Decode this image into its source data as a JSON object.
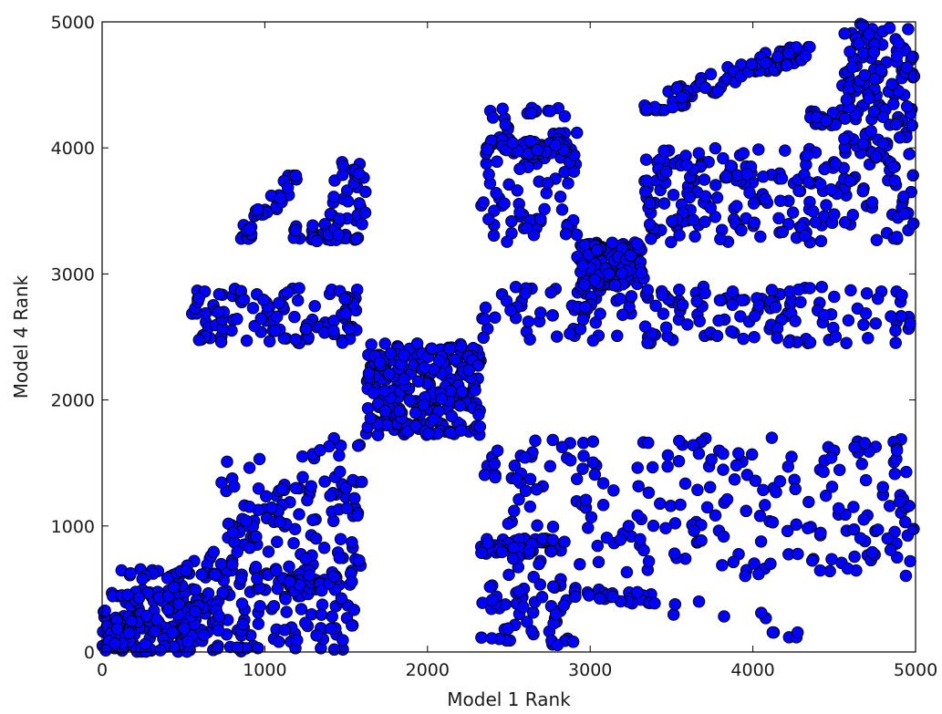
{
  "chart_data": {
    "type": "scatter",
    "title": "",
    "xlabel": "Model 1 Rank",
    "ylabel": "Model 4 Rank",
    "xlim": [
      0,
      5000
    ],
    "ylim": [
      0,
      5000
    ],
    "x_ticks": [
      "0",
      "1000",
      "2000",
      "3000",
      "4000",
      "5000"
    ],
    "y_ticks": [
      "0",
      "1000",
      "2000",
      "3000",
      "4000",
      "5000"
    ],
    "grid": false,
    "legend": "none",
    "marker": {
      "shape": "circle",
      "fill": "#0000ff",
      "edge": "#000000"
    },
    "clusters": [
      {
        "x": [
          0,
          700
        ],
        "y": [
          0,
          500
        ],
        "n": 130,
        "density": "dense"
      },
      {
        "x": [
          0,
          1600
        ],
        "y": [
          0,
          1700
        ],
        "n": 260,
        "shape": "lower-triangle"
      },
      {
        "x": [
          700,
          1600
        ],
        "y": [
          100,
          1700
        ],
        "n": 70
      },
      {
        "x": [
          1150,
          1450
        ],
        "y": [
          480,
          620
        ],
        "n": 30,
        "density": "dense"
      },
      {
        "x": [
          100,
          750
        ],
        "y": [
          580,
          660
        ],
        "n": 25
      },
      {
        "x": [
          550,
          1600
        ],
        "y": [
          2450,
          2900
        ],
        "n": 110
      },
      {
        "x": [
          850,
          1200
        ],
        "y": [
          3280,
          3780
        ],
        "n": 35,
        "shape": "diagonal"
      },
      {
        "x": [
          1150,
          1500
        ],
        "y": [
          3260,
          3400
        ],
        "n": 25
      },
      {
        "x": [
          1400,
          1620
        ],
        "y": [
          3260,
          3950
        ],
        "n": 35
      },
      {
        "x": [
          1620,
          2330
        ],
        "y": [
          1720,
          2450
        ],
        "n": 260,
        "density": "dense"
      },
      {
        "x": [
          2330,
          2920
        ],
        "y": [
          40,
          600
        ],
        "n": 55
      },
      {
        "x": [
          2330,
          2850
        ],
        "y": [
          780,
          900
        ],
        "n": 50,
        "density": "dense"
      },
      {
        "x": [
          2330,
          5000
        ],
        "y": [
          600,
          1700
        ],
        "n": 230
      },
      {
        "x": [
          2900,
          3400
        ],
        "y": [
          380,
          500
        ],
        "n": 25
      },
      {
        "x": [
          3500,
          4100
        ],
        "y": [
          250,
          420
        ],
        "n": 6
      },
      {
        "x": [
          4100,
          4300
        ],
        "y": [
          100,
          160
        ],
        "n": 5
      },
      {
        "x": [
          2330,
          3400
        ],
        "y": [
          2450,
          2900
        ],
        "n": 70
      },
      {
        "x": [
          3400,
          5000
        ],
        "y": [
          2450,
          2900
        ],
        "n": 110
      },
      {
        "x": [
          2920,
          3330
        ],
        "y": [
          2900,
          3250
        ],
        "n": 150,
        "density": "dense"
      },
      {
        "x": [
          2330,
          2920
        ],
        "y": [
          3250,
          4320
        ],
        "n": 90
      },
      {
        "x": [
          2330,
          2850
        ],
        "y": [
          3950,
          4070
        ],
        "n": 40,
        "density": "dense"
      },
      {
        "x": [
          3330,
          5000
        ],
        "y": [
          3250,
          4000
        ],
        "n": 220
      },
      {
        "x": [
          3330,
          4350
        ],
        "y": [
          4300,
          4800
        ],
        "n": 90,
        "shape": "diagonal"
      },
      {
        "x": [
          4350,
          4550
        ],
        "y": [
          4180,
          4300
        ],
        "n": 20,
        "density": "dense"
      },
      {
        "x": [
          4550,
          5000
        ],
        "y": [
          4000,
          5000
        ],
        "n": 120,
        "density": "dense"
      }
    ]
  }
}
